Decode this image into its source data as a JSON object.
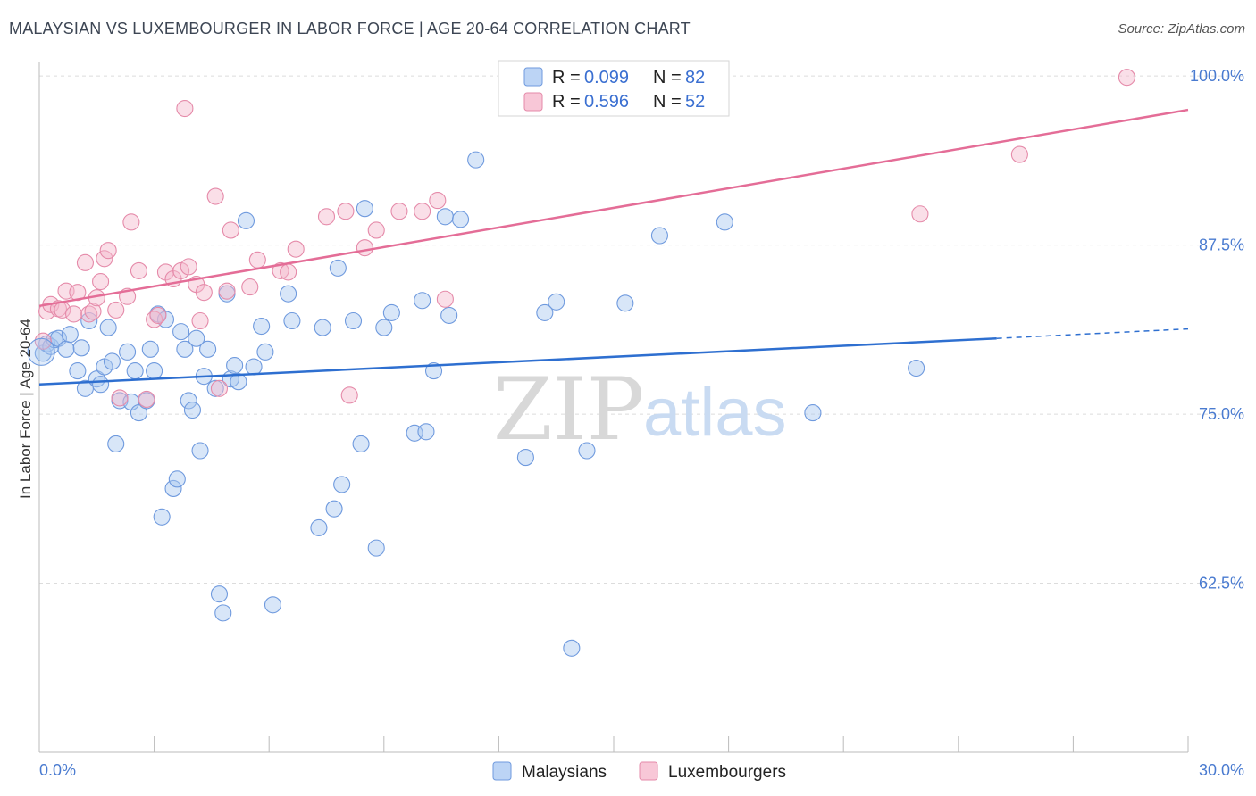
{
  "title": "MALAYSIAN VS LUXEMBOURGER IN LABOR FORCE | AGE 20-64 CORRELATION CHART",
  "source": "Source: ZipAtlas.com",
  "watermark": {
    "zip": "ZIP",
    "atlas": "atlas"
  },
  "colors": {
    "blue": "#4a7bd0",
    "blue_fill": "#a8c8f0",
    "pink": "#e87099",
    "pink_fill": "#f5b8cc"
  },
  "legend": {
    "rows": [
      {
        "r_label": "R = ",
        "r_value": "0.099",
        "n_label": "N = ",
        "n_value": "82"
      },
      {
        "r_label": "R = ",
        "r_value": "0.596",
        "n_label": "N = ",
        "n_value": "52"
      }
    ]
  },
  "bottom_legend": {
    "series1": "Malaysians",
    "series2": "Luxembourgers"
  },
  "chart_data": {
    "type": "scatter",
    "title": "MALAYSIAN VS LUXEMBOURGER IN LABOR FORCE | AGE 20-64 CORRELATION CHART",
    "xlabel": "",
    "ylabel": "In Labor Force | Age 20-64",
    "xlim": [
      0,
      30
    ],
    "ylim": [
      50,
      101
    ],
    "x_tick_labels": [
      "0.0%",
      "30.0%"
    ],
    "y_ticks": [
      62.5,
      75.0,
      87.5,
      100.0
    ],
    "y_tick_labels": [
      "62.5%",
      "75.0%",
      "87.5%",
      "100.0%"
    ],
    "series": [
      {
        "name": "Malaysians",
        "color": "#4a7bd0",
        "trend": {
          "x0": 0,
          "y0": 77.2,
          "x1": 25.0,
          "y1": 80.6,
          "dashed_to_x": 30,
          "dashed_to_y": 81.3
        },
        "points": [
          [
            0.1,
            79.5
          ],
          [
            0.2,
            80.2
          ],
          [
            0.3,
            80.0
          ],
          [
            0.4,
            80.5
          ],
          [
            0.5,
            80.6
          ],
          [
            0.7,
            79.8
          ],
          [
            0.8,
            80.9
          ],
          [
            1.0,
            78.2
          ],
          [
            1.1,
            79.9
          ],
          [
            1.2,
            76.9
          ],
          [
            1.3,
            81.9
          ],
          [
            1.5,
            77.6
          ],
          [
            1.6,
            77.2
          ],
          [
            1.7,
            78.5
          ],
          [
            1.8,
            81.4
          ],
          [
            1.9,
            78.9
          ],
          [
            2.0,
            72.8
          ],
          [
            2.1,
            76.0
          ],
          [
            2.3,
            79.6
          ],
          [
            2.4,
            75.9
          ],
          [
            2.5,
            78.2
          ],
          [
            2.6,
            75.1
          ],
          [
            2.8,
            76.0
          ],
          [
            2.9,
            79.8
          ],
          [
            3.0,
            78.2
          ],
          [
            3.1,
            82.4
          ],
          [
            3.2,
            67.4
          ],
          [
            3.3,
            82.0
          ],
          [
            3.5,
            69.5
          ],
          [
            3.6,
            70.2
          ],
          [
            3.7,
            81.1
          ],
          [
            3.8,
            79.8
          ],
          [
            3.9,
            76.0
          ],
          [
            4.0,
            75.3
          ],
          [
            4.1,
            80.6
          ],
          [
            4.2,
            72.3
          ],
          [
            4.3,
            77.8
          ],
          [
            4.4,
            79.8
          ],
          [
            4.6,
            76.9
          ],
          [
            4.7,
            61.7
          ],
          [
            4.8,
            60.3
          ],
          [
            4.9,
            83.9
          ],
          [
            5.0,
            77.6
          ],
          [
            5.1,
            78.6
          ],
          [
            5.2,
            77.4
          ],
          [
            5.4,
            89.3
          ],
          [
            5.6,
            78.5
          ],
          [
            5.8,
            81.5
          ],
          [
            5.9,
            79.6
          ],
          [
            6.1,
            60.9
          ],
          [
            6.5,
            83.9
          ],
          [
            6.6,
            81.9
          ],
          [
            7.3,
            66.6
          ],
          [
            7.4,
            81.4
          ],
          [
            7.7,
            68.0
          ],
          [
            7.8,
            85.8
          ],
          [
            7.9,
            69.8
          ],
          [
            8.2,
            81.9
          ],
          [
            8.4,
            72.8
          ],
          [
            8.5,
            90.2
          ],
          [
            8.8,
            65.1
          ],
          [
            9.0,
            81.4
          ],
          [
            9.2,
            82.5
          ],
          [
            9.8,
            73.6
          ],
          [
            10.0,
            83.4
          ],
          [
            10.1,
            73.7
          ],
          [
            10.3,
            78.2
          ],
          [
            10.6,
            89.6
          ],
          [
            10.7,
            82.3
          ],
          [
            11.0,
            89.4
          ],
          [
            11.4,
            93.8
          ],
          [
            12.7,
            71.8
          ],
          [
            13.2,
            82.5
          ],
          [
            13.5,
            83.3
          ],
          [
            14.3,
            72.3
          ],
          [
            15.3,
            83.2
          ],
          [
            16.2,
            88.2
          ],
          [
            17.9,
            89.2
          ],
          [
            20.2,
            75.1
          ],
          [
            22.9,
            78.4
          ],
          [
            13.9,
            57.7
          ]
        ]
      },
      {
        "name": "Luxembourgers",
        "color": "#e87099",
        "trend": {
          "x0": 0,
          "y0": 83.0,
          "x1": 30,
          "y1": 97.5
        },
        "points": [
          [
            0.1,
            80.4
          ],
          [
            0.2,
            82.6
          ],
          [
            0.3,
            83.1
          ],
          [
            0.5,
            82.8
          ],
          [
            0.6,
            82.7
          ],
          [
            0.7,
            84.1
          ],
          [
            0.9,
            82.4
          ],
          [
            1.0,
            84.0
          ],
          [
            1.2,
            86.2
          ],
          [
            1.3,
            82.4
          ],
          [
            1.4,
            82.6
          ],
          [
            1.5,
            83.6
          ],
          [
            1.6,
            84.8
          ],
          [
            1.7,
            86.5
          ],
          [
            1.8,
            87.1
          ],
          [
            2.0,
            82.7
          ],
          [
            2.1,
            76.2
          ],
          [
            2.3,
            83.7
          ],
          [
            2.4,
            89.2
          ],
          [
            2.6,
            85.6
          ],
          [
            2.8,
            76.1
          ],
          [
            3.0,
            82.0
          ],
          [
            3.1,
            82.3
          ],
          [
            3.3,
            85.5
          ],
          [
            3.5,
            85.0
          ],
          [
            3.7,
            85.6
          ],
          [
            3.8,
            97.6
          ],
          [
            3.9,
            85.9
          ],
          [
            4.1,
            84.6
          ],
          [
            4.2,
            81.9
          ],
          [
            4.3,
            84.0
          ],
          [
            4.6,
            91.1
          ],
          [
            4.7,
            76.9
          ],
          [
            4.9,
            84.1
          ],
          [
            5.0,
            88.6
          ],
          [
            5.5,
            84.4
          ],
          [
            5.7,
            86.4
          ],
          [
            6.3,
            85.6
          ],
          [
            6.5,
            85.5
          ],
          [
            6.7,
            87.2
          ],
          [
            7.5,
            89.6
          ],
          [
            8.0,
            90.0
          ],
          [
            8.1,
            76.4
          ],
          [
            8.5,
            87.3
          ],
          [
            8.8,
            88.6
          ],
          [
            9.4,
            90.0
          ],
          [
            10.0,
            90.0
          ],
          [
            10.4,
            90.8
          ],
          [
            10.6,
            83.5
          ],
          [
            23.0,
            89.8
          ],
          [
            25.6,
            94.2
          ],
          [
            28.4,
            99.9
          ]
        ]
      }
    ]
  }
}
